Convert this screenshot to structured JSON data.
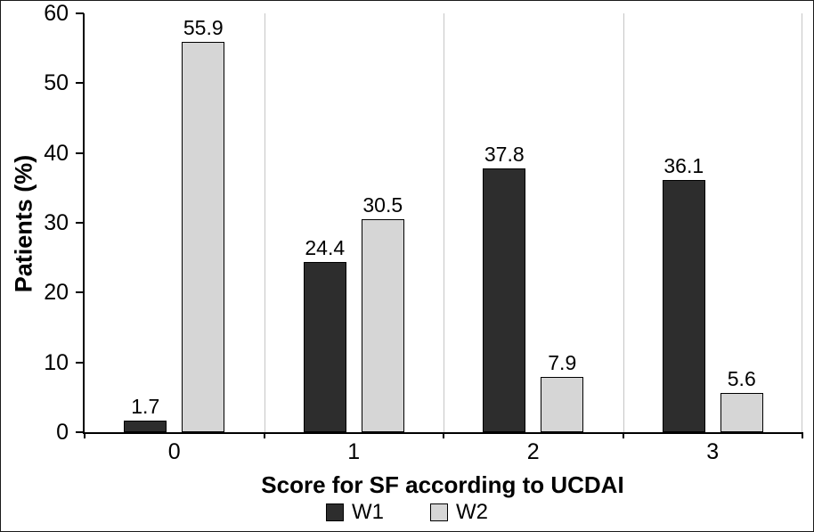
{
  "chart_data": {
    "type": "bar",
    "categories": [
      "0",
      "1",
      "2",
      "3"
    ],
    "series": [
      {
        "name": "W1",
        "color": "#2d2d2d",
        "values": [
          1.7,
          24.4,
          37.8,
          36.1
        ]
      },
      {
        "name": "W2",
        "color": "#d6d6d6",
        "values": [
          55.9,
          30.5,
          7.9,
          5.6
        ]
      }
    ],
    "title": "",
    "xlabel": "Score for SF according to UCDAI",
    "ylabel": "Patients (%)",
    "ylim": [
      0,
      60
    ],
    "ytick_step": 10,
    "grid": "vertical light separators at group boundaries",
    "legend_position": "bottom",
    "colors": {
      "axis": "#000000",
      "separator": "#c6c6c6",
      "background": "#ffffff"
    }
  }
}
